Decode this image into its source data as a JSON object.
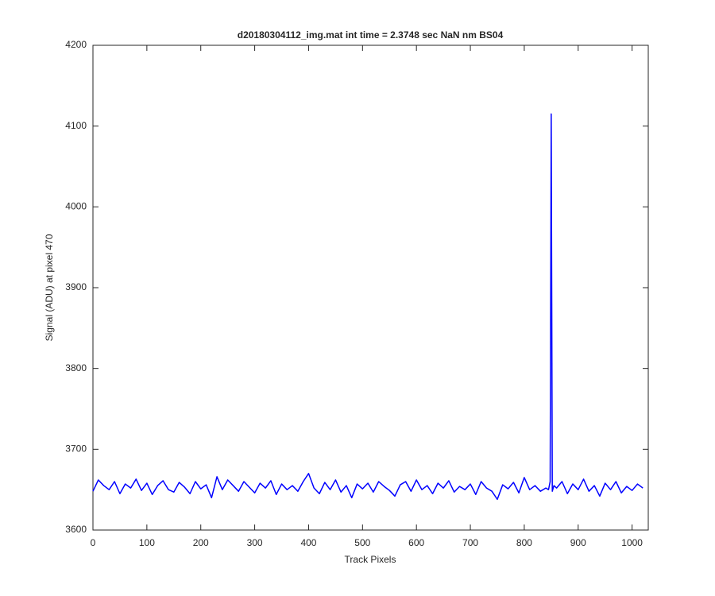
{
  "chart_data": {
    "type": "line",
    "title": "d20180304112_img.mat int time = 2.3748 sec  NaN nm BS04",
    "x_label": "Track Pixels",
    "y_label": "Signal (ADU) at pixel 470",
    "x": [
      0,
      10,
      20,
      30,
      40,
      50,
      60,
      70,
      80,
      90,
      100,
      110,
      120,
      130,
      140,
      150,
      160,
      170,
      180,
      190,
      200,
      210,
      220,
      230,
      240,
      250,
      260,
      270,
      280,
      290,
      300,
      310,
      320,
      330,
      340,
      350,
      360,
      370,
      380,
      390,
      400,
      410,
      420,
      430,
      440,
      450,
      460,
      470,
      480,
      490,
      500,
      510,
      520,
      530,
      540,
      550,
      560,
      570,
      580,
      590,
      600,
      610,
      620,
      630,
      640,
      650,
      660,
      670,
      680,
      690,
      700,
      710,
      720,
      730,
      740,
      750,
      760,
      770,
      780,
      790,
      800,
      810,
      820,
      830,
      840,
      845,
      848,
      850,
      852,
      855,
      860,
      870,
      880,
      890,
      900,
      910,
      920,
      930,
      940,
      950,
      960,
      970,
      980,
      990,
      1000,
      1010,
      1020
    ],
    "series": [
      {
        "color": "#0000ff",
        "values": [
          3648,
          3662,
          3655,
          3650,
          3660,
          3645,
          3657,
          3652,
          3663,
          3649,
          3658,
          3644,
          3655,
          3661,
          3650,
          3647,
          3659,
          3653,
          3645,
          3660,
          3651,
          3656,
          3640,
          3666,
          3650,
          3662,
          3655,
          3648,
          3660,
          3653,
          3646,
          3658,
          3652,
          3661,
          3644,
          3657,
          3650,
          3655,
          3648,
          3660,
          3670,
          3652,
          3645,
          3659,
          3650,
          3662,
          3647,
          3655,
          3640,
          3657,
          3651,
          3658,
          3647,
          3660,
          3654,
          3649,
          3642,
          3656,
          3660,
          3648,
          3662,
          3650,
          3655,
          3645,
          3658,
          3652,
          3661,
          3647,
          3654,
          3650,
          3657,
          3644,
          3660,
          3652,
          3648,
          3638,
          3656,
          3651,
          3659,
          3646,
          3665,
          3650,
          3655,
          3648,
          3652,
          3650,
          3660,
          4115,
          3648,
          3655,
          3652,
          3660,
          3645,
          3657,
          3650,
          3663,
          3648,
          3655,
          3642,
          3658,
          3650,
          3660,
          3646,
          3654,
          3649,
          3657,
          3652
        ]
      }
    ],
    "xlim": [
      0,
      1030
    ],
    "xticks": [
      0,
      100,
      200,
      300,
      400,
      500,
      600,
      700,
      800,
      900,
      1000
    ],
    "ylim": [
      3600,
      4200
    ],
    "yticks": [
      3600,
      3700,
      3800,
      3900,
      4000,
      4100,
      4200
    ]
  }
}
